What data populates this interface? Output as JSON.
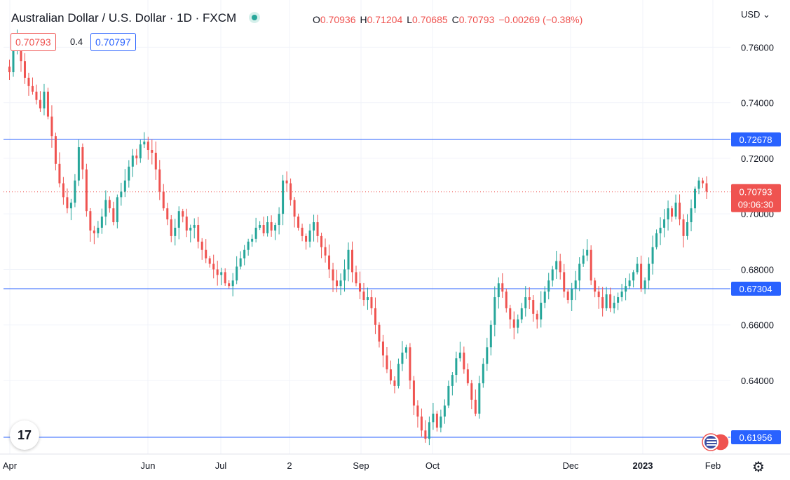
{
  "header": {
    "title": "Australian Dollar / U.S. Dollar · 1D · FXCM",
    "ohlc": [
      {
        "k": "O",
        "v": "0.70936"
      },
      {
        "k": "H",
        "v": "0.71204"
      },
      {
        "k": "L",
        "v": "0.70685"
      },
      {
        "k": "C",
        "v": "0.70793"
      },
      {
        "k": "",
        "v": "−0.00269 (−0.38%)"
      }
    ]
  },
  "trade": {
    "sell": "0.70793",
    "spread": "0.4",
    "buy": "0.70797"
  },
  "currency": "USD ⌄",
  "logo": "17",
  "colors": {
    "up": "#26a69a",
    "down": "#ef5350",
    "level": "#2962ff",
    "grid": "#f0f3fa"
  },
  "chart_data": {
    "type": "candlestick",
    "x_ticks": [
      "Apr",
      "Jun",
      "Jul",
      "2",
      "Sep",
      "Oct",
      "Dec",
      "2023",
      "Feb"
    ],
    "y_ticks": [
      "0.76000",
      "0.74000",
      "0.72000",
      "0.70000",
      "0.68000",
      "0.66000",
      "0.64000"
    ],
    "ylim": [
      0.6135,
      0.777
    ],
    "last_price": {
      "value": 0.70793,
      "label": "0.70793",
      "countdown": "09:06:30"
    },
    "levels": [
      {
        "value": 0.72678,
        "label": "0.72678"
      },
      {
        "value": 0.67304,
        "label": "0.67304"
      },
      {
        "value": 0.61956,
        "label": "0.61956"
      }
    ],
    "path": [
      0.753,
      0.751,
      0.76,
      0.764,
      0.755,
      0.749,
      0.746,
      0.744,
      0.741,
      0.738,
      0.744,
      0.735,
      0.728,
      0.718,
      0.711,
      0.706,
      0.702,
      0.704,
      0.712,
      0.724,
      0.716,
      0.701,
      0.694,
      0.693,
      0.695,
      0.699,
      0.705,
      0.702,
      0.697,
      0.706,
      0.708,
      0.712,
      0.717,
      0.721,
      0.72,
      0.725,
      0.726,
      0.723,
      0.722,
      0.716,
      0.708,
      0.702,
      0.698,
      0.692,
      0.695,
      0.701,
      0.699,
      0.694,
      0.695,
      0.696,
      0.69,
      0.687,
      0.684,
      0.682,
      0.68,
      0.678,
      0.679,
      0.675,
      0.674,
      0.676,
      0.681,
      0.684,
      0.687,
      0.69,
      0.691,
      0.695,
      0.696,
      0.693,
      0.697,
      0.694,
      0.696,
      0.7,
      0.712,
      0.711,
      0.705,
      0.699,
      0.695,
      0.692,
      0.69,
      0.694,
      0.697,
      0.692,
      0.688,
      0.685,
      0.68,
      0.676,
      0.674,
      0.676,
      0.68,
      0.687,
      0.679,
      0.675,
      0.672,
      0.669,
      0.67,
      0.666,
      0.66,
      0.654,
      0.649,
      0.644,
      0.64,
      0.638,
      0.646,
      0.65,
      0.652,
      0.64,
      0.631,
      0.627,
      0.622,
      0.619,
      0.625,
      0.628,
      0.623,
      0.627,
      0.631,
      0.638,
      0.642,
      0.648,
      0.65,
      0.644,
      0.639,
      0.633,
      0.628,
      0.639,
      0.646,
      0.652,
      0.66,
      0.67,
      0.675,
      0.672,
      0.666,
      0.662,
      0.659,
      0.662,
      0.666,
      0.67,
      0.669,
      0.664,
      0.662,
      0.668,
      0.672,
      0.676,
      0.68,
      0.683,
      0.679,
      0.672,
      0.669,
      0.673,
      0.676,
      0.682,
      0.685,
      0.687,
      0.676,
      0.672,
      0.67,
      0.666,
      0.671,
      0.666,
      0.668,
      0.67,
      0.672,
      0.674,
      0.676,
      0.679,
      0.682,
      0.673,
      0.676,
      0.682,
      0.688,
      0.693,
      0.695,
      0.698,
      0.702,
      0.699,
      0.704,
      0.698,
      0.692,
      0.697,
      0.702,
      0.709,
      0.712,
      0.711,
      0.708
    ]
  }
}
